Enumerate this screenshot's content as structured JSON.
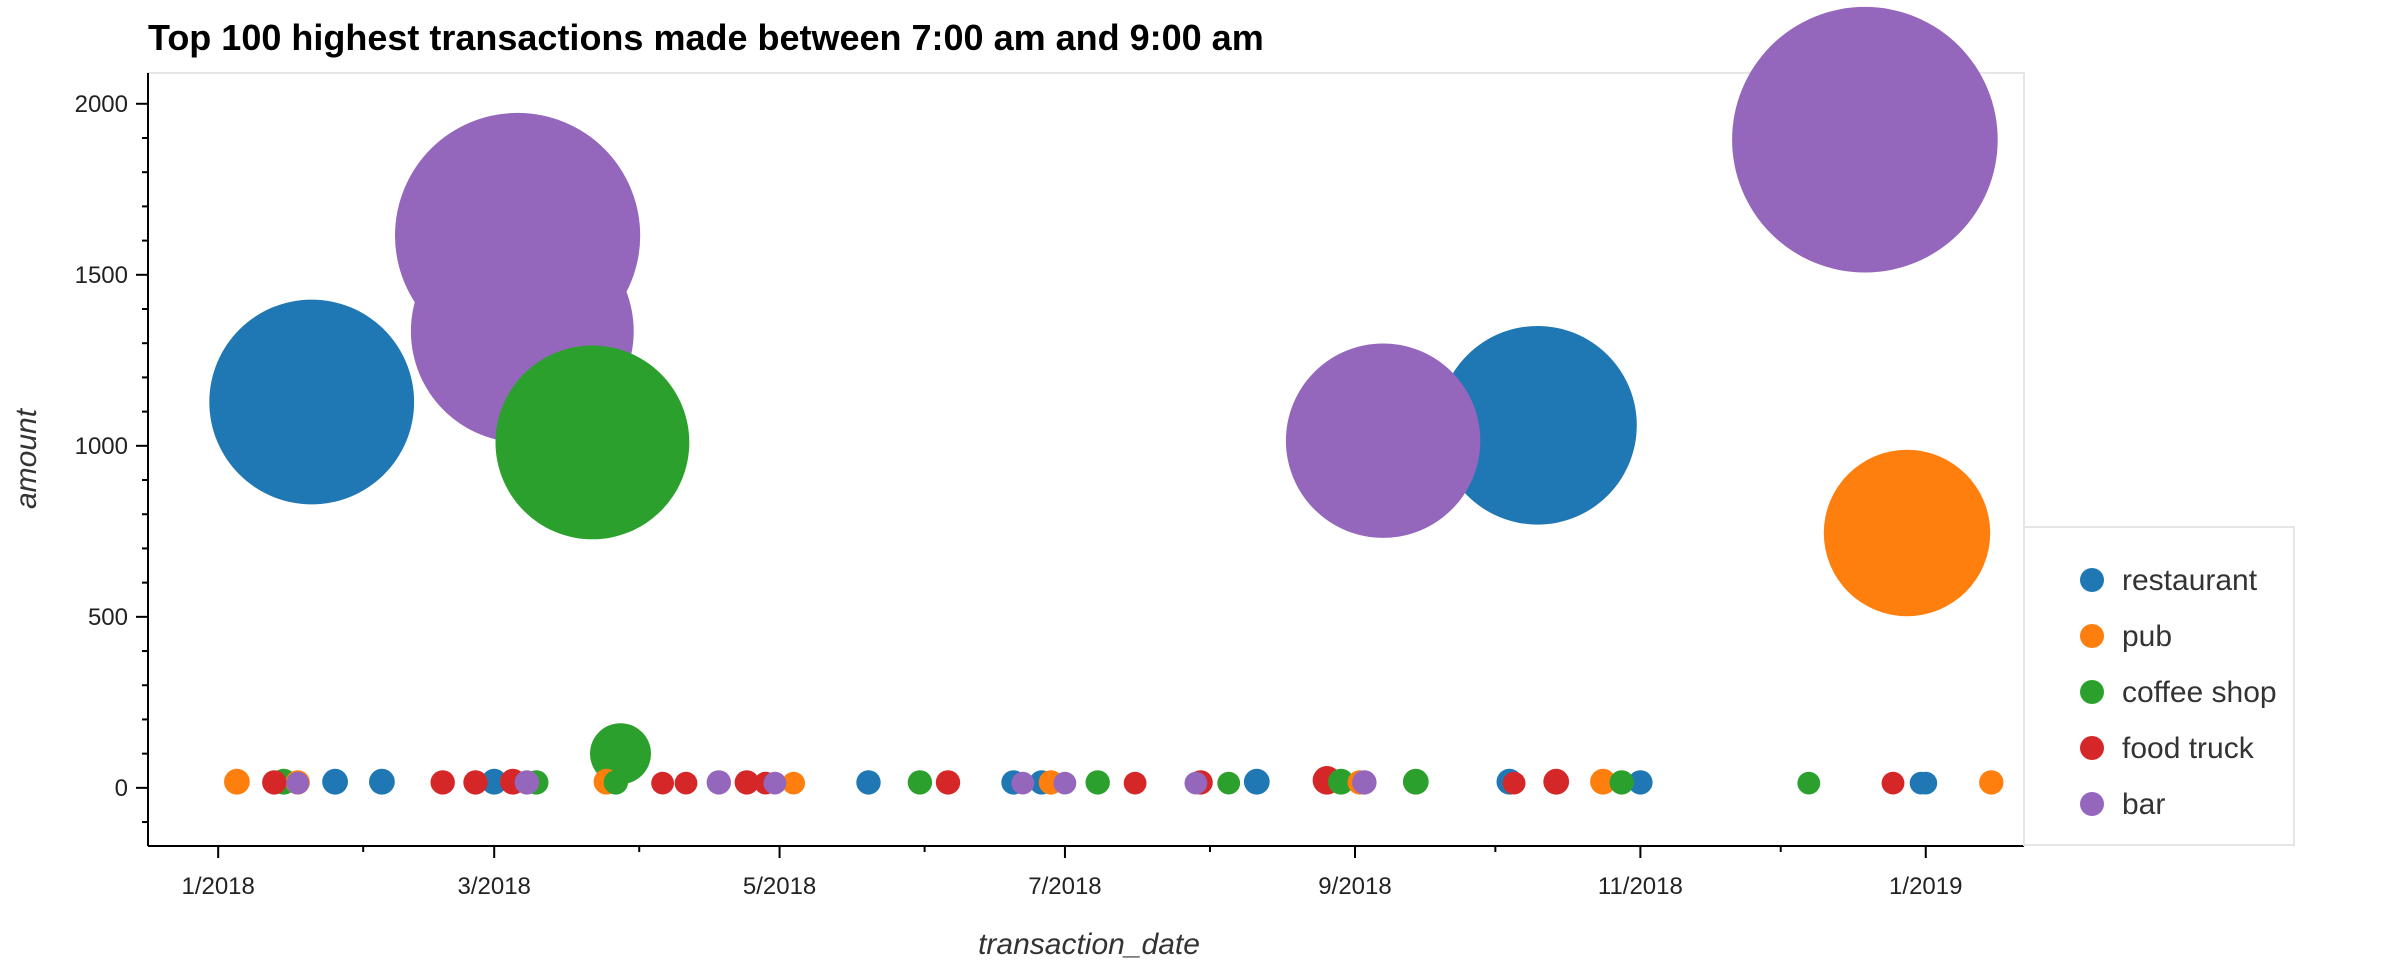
{
  "chart_data": {
    "type": "scatter",
    "title": "Top 100 highest transactions made between 7:00 am and 9:00 am",
    "xlabel": "transaction_date",
    "ylabel": "amount",
    "xlim": [
      "2017-12-17",
      "2019-01-22"
    ],
    "ylim": [
      -170,
      2090
    ],
    "x_ticks": [
      {
        "date": "2018-01-01",
        "label": "1/2018"
      },
      {
        "date": "2018-03-01",
        "label": "3/2018"
      },
      {
        "date": "2018-05-01",
        "label": "5/2018"
      },
      {
        "date": "2018-07-01",
        "label": "7/2018"
      },
      {
        "date": "2018-09-01",
        "label": "9/2018"
      },
      {
        "date": "2018-11-01",
        "label": "11/2018"
      },
      {
        "date": "2019-01-01",
        "label": "1/2019"
      }
    ],
    "y_ticks": [
      0,
      500,
      1000,
      1500,
      2000
    ],
    "y_minor_step": 100,
    "marker_size": "proportional to amount",
    "legend_position": "right",
    "grid": false,
    "series": [
      {
        "name": "restaurant",
        "color": "#1f77b4",
        "points": [
          {
            "x": "2018-01-21",
            "y": 1128
          },
          {
            "x": "2018-10-10",
            "y": 1060
          },
          {
            "x": "2018-01-26",
            "y": 18
          },
          {
            "x": "2018-02-05",
            "y": 18
          },
          {
            "x": "2018-03-01",
            "y": 18
          },
          {
            "x": "2018-05-20",
            "y": 16
          },
          {
            "x": "2018-06-20",
            "y": 16
          },
          {
            "x": "2018-06-26",
            "y": 16
          },
          {
            "x": "2018-08-11",
            "y": 18
          },
          {
            "x": "2018-10-04",
            "y": 18
          },
          {
            "x": "2018-11-01",
            "y": 16
          },
          {
            "x": "2018-12-31",
            "y": 14
          },
          {
            "x": "2019-01-01",
            "y": 14
          }
        ]
      },
      {
        "name": "pub",
        "color": "#ff7f0e",
        "points": [
          {
            "x": "2018-12-28",
            "y": 745
          },
          {
            "x": "2018-01-05",
            "y": 18
          },
          {
            "x": "2018-01-18",
            "y": 16
          },
          {
            "x": "2018-03-25",
            "y": 18
          },
          {
            "x": "2018-05-04",
            "y": 14
          },
          {
            "x": "2018-06-28",
            "y": 16
          },
          {
            "x": "2018-09-02",
            "y": 16
          },
          {
            "x": "2018-10-24",
            "y": 18
          },
          {
            "x": "2019-01-15",
            "y": 16
          }
        ]
      },
      {
        "name": "coffee shop",
        "color": "#2ca02c",
        "points": [
          {
            "x": "2018-03-22",
            "y": 1010
          },
          {
            "x": "2018-03-28",
            "y": 100
          },
          {
            "x": "2018-01-15",
            "y": 18
          },
          {
            "x": "2018-03-10",
            "y": 16
          },
          {
            "x": "2018-03-27",
            "y": 16
          },
          {
            "x": "2018-05-31",
            "y": 16
          },
          {
            "x": "2018-07-08",
            "y": 16
          },
          {
            "x": "2018-08-05",
            "y": 14
          },
          {
            "x": "2018-08-29",
            "y": 18
          },
          {
            "x": "2018-09-14",
            "y": 18
          },
          {
            "x": "2018-10-28",
            "y": 16
          },
          {
            "x": "2018-12-07",
            "y": 14
          }
        ]
      },
      {
        "name": "food truck",
        "color": "#d62728",
        "points": [
          {
            "x": "2018-01-13",
            "y": 16
          },
          {
            "x": "2018-02-18",
            "y": 16
          },
          {
            "x": "2018-02-25",
            "y": 16
          },
          {
            "x": "2018-03-05",
            "y": 18
          },
          {
            "x": "2018-04-06",
            "y": 14
          },
          {
            "x": "2018-04-11",
            "y": 14
          },
          {
            "x": "2018-04-24",
            "y": 16
          },
          {
            "x": "2018-04-28",
            "y": 14
          },
          {
            "x": "2018-06-06",
            "y": 16
          },
          {
            "x": "2018-07-16",
            "y": 14
          },
          {
            "x": "2018-07-30",
            "y": 16
          },
          {
            "x": "2018-08-26",
            "y": 22
          },
          {
            "x": "2018-10-05",
            "y": 14
          },
          {
            "x": "2018-10-14",
            "y": 18
          },
          {
            "x": "2018-12-25",
            "y": 14
          }
        ]
      },
      {
        "name": "bar",
        "color": "#9467bd",
        "points": [
          {
            "x": "2018-03-06",
            "y": 1615
          },
          {
            "x": "2018-03-07",
            "y": 1335
          },
          {
            "x": "2018-09-07",
            "y": 1015
          },
          {
            "x": "2018-12-19",
            "y": 1895
          },
          {
            "x": "2018-01-18",
            "y": 14
          },
          {
            "x": "2018-03-08",
            "y": 16
          },
          {
            "x": "2018-04-18",
            "y": 16
          },
          {
            "x": "2018-04-30",
            "y": 14
          },
          {
            "x": "2018-06-22",
            "y": 14
          },
          {
            "x": "2018-07-01",
            "y": 14
          },
          {
            "x": "2018-07-29",
            "y": 14
          },
          {
            "x": "2018-09-03",
            "y": 16
          }
        ]
      }
    ]
  }
}
